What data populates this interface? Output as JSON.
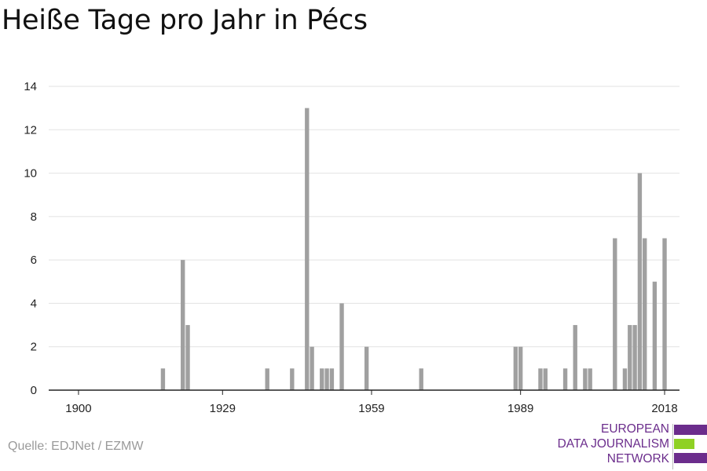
{
  "title": "Heiße Tage pro Jahr in Pécs",
  "source": "Quelle: EDJNet / EZMW",
  "logo": {
    "lines": [
      "EUROPEAN",
      "DATA JOURNALISM",
      "NETWORK"
    ],
    "colors": {
      "purple": "#6b2d8c",
      "green": "#8fd124"
    }
  },
  "chart_data": {
    "type": "bar",
    "title": "Heiße Tage pro Jahr in Pécs",
    "xlabel": "",
    "ylabel": "",
    "xlim": [
      1894,
      2021
    ],
    "ylim": [
      0,
      14
    ],
    "yticks": [
      0,
      2,
      4,
      6,
      8,
      10,
      12,
      14
    ],
    "xticks": [
      1900,
      1929,
      1959,
      1989,
      2018
    ],
    "grid": true,
    "bar_color": "#a0a0a0",
    "x": [
      1917,
      1921,
      1922,
      1938,
      1943,
      1946,
      1947,
      1949,
      1950,
      1951,
      1953,
      1958,
      1969,
      1988,
      1989,
      1993,
      1994,
      1998,
      2000,
      2002,
      2003,
      2008,
      2010,
      2011,
      2012,
      2013,
      2014,
      2015,
      2016,
      2018
    ],
    "values": [
      1,
      6,
      3,
      1,
      1,
      13,
      2,
      1,
      1,
      1,
      4,
      2,
      1,
      2,
      2,
      1,
      1,
      1,
      3,
      1,
      1,
      7,
      1,
      3,
      3,
      10,
      7,
      0,
      5,
      7
    ]
  }
}
